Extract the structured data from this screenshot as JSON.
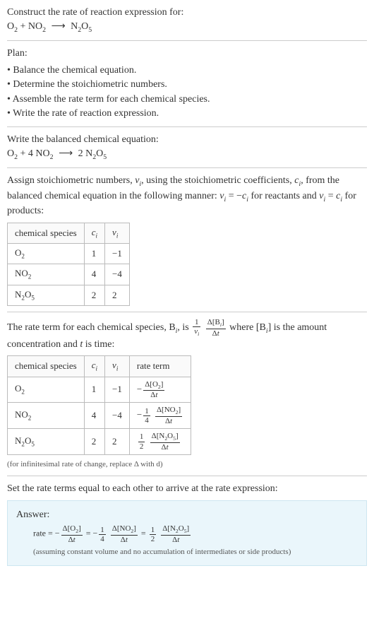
{
  "header": {
    "title": "Construct the rate of reaction expression for:",
    "equation_html": "O<sub>2</sub> + NO<sub>2</sub> <span class='arrow'>⟶</span> N<sub>2</sub>O<sub>5</sub>"
  },
  "plan": {
    "title": "Plan:",
    "items": [
      "• Balance the chemical equation.",
      "• Determine the stoichiometric numbers.",
      "• Assemble the rate term for each chemical species.",
      "• Write the rate of reaction expression."
    ]
  },
  "balanced": {
    "title": "Write the balanced chemical equation:",
    "equation_html": "O<sub>2</sub> + 4 NO<sub>2</sub> <span class='arrow'>⟶</span> 2 N<sub>2</sub>O<sub>5</sub>"
  },
  "stoich": {
    "intro_html": "Assign stoichiometric numbers, <span class='italic-var'>ν<sub>i</sub></span>, using the stoichiometric coefficients, <span class='italic-var'>c<sub>i</sub></span>, from the balanced chemical equation in the following manner: <span class='italic-var'>ν<sub>i</sub></span> = −<span class='italic-var'>c<sub>i</sub></span> for reactants and <span class='italic-var'>ν<sub>i</sub></span> = <span class='italic-var'>c<sub>i</sub></span> for products:",
    "table": {
      "headers": [
        "chemical species",
        "<span class='italic-var'>c<sub>i</sub></span>",
        "<span class='italic-var'>ν<sub>i</sub></span>"
      ],
      "rows": [
        [
          "O<sub>2</sub>",
          "1",
          "−1"
        ],
        [
          "NO<sub>2</sub>",
          "4",
          "−4"
        ],
        [
          "N<sub>2</sub>O<sub>5</sub>",
          "2",
          "2"
        ]
      ]
    }
  },
  "rate_term": {
    "intro_html": "The rate term for each chemical species, B<sub><span class='italic-var'>i</span></sub>, is <span class='frac'><span class='num'>1</span><span class='den'><span class='italic-var'>ν<sub>i</sub></span></span></span> <span class='frac'><span class='num'>Δ[B<sub><span class='italic-var'>i</span></sub>]</span><span class='den'>Δ<span class='italic-var'>t</span></span></span> where [B<sub><span class='italic-var'>i</span></sub>] is the amount concentration and <span class='italic-var'>t</span> is time:",
    "table": {
      "headers": [
        "chemical species",
        "<span class='italic-var'>c<sub>i</sub></span>",
        "<span class='italic-var'>ν<sub>i</sub></span>",
        "rate term"
      ],
      "rows": [
        [
          "O<sub>2</sub>",
          "1",
          "−1",
          "−<span class='frac'><span class='num'>Δ[O<sub>2</sub>]</span><span class='den'>Δ<span class='italic-var'>t</span></span></span>"
        ],
        [
          "NO<sub>2</sub>",
          "4",
          "−4",
          "−<span class='frac'><span class='num'>1</span><span class='den'>4</span></span> <span class='frac'><span class='num'>Δ[NO<sub>2</sub>]</span><span class='den'>Δ<span class='italic-var'>t</span></span></span>"
        ],
        [
          "N<sub>2</sub>O<sub>5</sub>",
          "2",
          "2",
          "<span class='frac'><span class='num'>1</span><span class='den'>2</span></span> <span class='frac'><span class='num'>Δ[N<sub>2</sub>O<sub>5</sub>]</span><span class='den'>Δ<span class='italic-var'>t</span></span></span>"
        ]
      ]
    },
    "note": "(for infinitesimal rate of change, replace Δ with d)"
  },
  "final": {
    "intro": "Set the rate terms equal to each other to arrive at the rate expression:"
  },
  "answer": {
    "label": "Answer:",
    "equation_html": "rate = −<span class='frac'><span class='num'>Δ[O<sub>2</sub>]</span><span class='den'>Δ<span class='italic-var'>t</span></span></span> = −<span class='frac'><span class='num'>1</span><span class='den'>4</span></span> <span class='frac'><span class='num'>Δ[NO<sub>2</sub>]</span><span class='den'>Δ<span class='italic-var'>t</span></span></span> = <span class='frac'><span class='num'>1</span><span class='den'>2</span></span> <span class='frac'><span class='num'>Δ[N<sub>2</sub>O<sub>5</sub>]</span><span class='den'>Δ<span class='italic-var'>t</span></span></span>",
    "note": "(assuming constant volume and no accumulation of intermediates or side products)",
    "bg_color": "#eaf6fb",
    "border_color": "#cde6f0"
  }
}
